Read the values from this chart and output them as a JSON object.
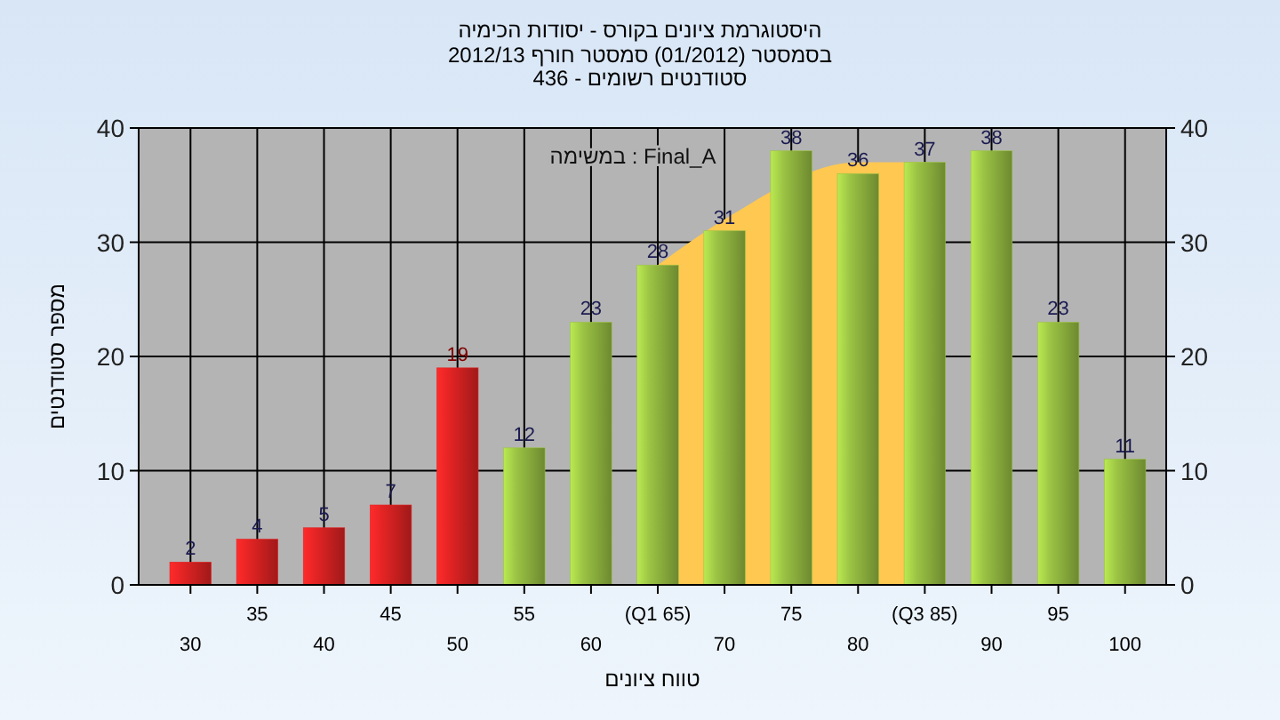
{
  "chart_data": {
    "type": "bar",
    "title": "היסטוגרמת ציונים בקורס - יסודות הכימיה",
    "subtitle": "בסמסטר  (01/2012)  סמסטר חורף 2012/13\nסטודנטים רשומים - 436",
    "xlabel": "טווח ציונים",
    "ylabel": "מספר סטודנטים",
    "categories": [
      "30",
      "35",
      "40",
      "45",
      "50",
      "55",
      "60",
      "(Q1 65)",
      "70",
      "75",
      "80",
      "(Q3 85)",
      "90",
      "95",
      "100"
    ],
    "series": [
      {
        "type": "area",
        "color": "#ffc850",
        "values": [
          null,
          null,
          null,
          null,
          null,
          null,
          null,
          28,
          32,
          null,
          37,
          37,
          null,
          null,
          null
        ]
      },
      {
        "values": [
          2,
          4,
          5,
          7,
          19,
          12,
          23,
          28,
          31,
          38,
          36,
          37,
          38,
          23,
          11
        ],
        "value_labels": [
          "2",
          "4",
          "5",
          "7",
          "19",
          "12",
          "23",
          "28",
          "31",
          "38",
          "36",
          "37",
          "38",
          "23",
          "11"
        ],
        "colors": [
          "#e42424",
          "#e42424",
          "#e42424",
          "#e42424",
          "#e42424",
          "#9cc444",
          "#9cc444",
          "#9cc444",
          "#9cc444",
          "#9cc444",
          "#9cc444",
          "#9cc444",
          "#9cc444",
          "#9cc444",
          "#9cc444"
        ]
      }
    ],
    "annotations": [
      "במשימה : Final_A"
    ],
    "ylim": [
      0,
      40
    ],
    "yticks": [
      0,
      10,
      20,
      30,
      40
    ],
    "y2lim": [
      0,
      40
    ],
    "y2ticks": [
      0,
      10,
      20,
      30,
      40
    ],
    "grid": true
  }
}
